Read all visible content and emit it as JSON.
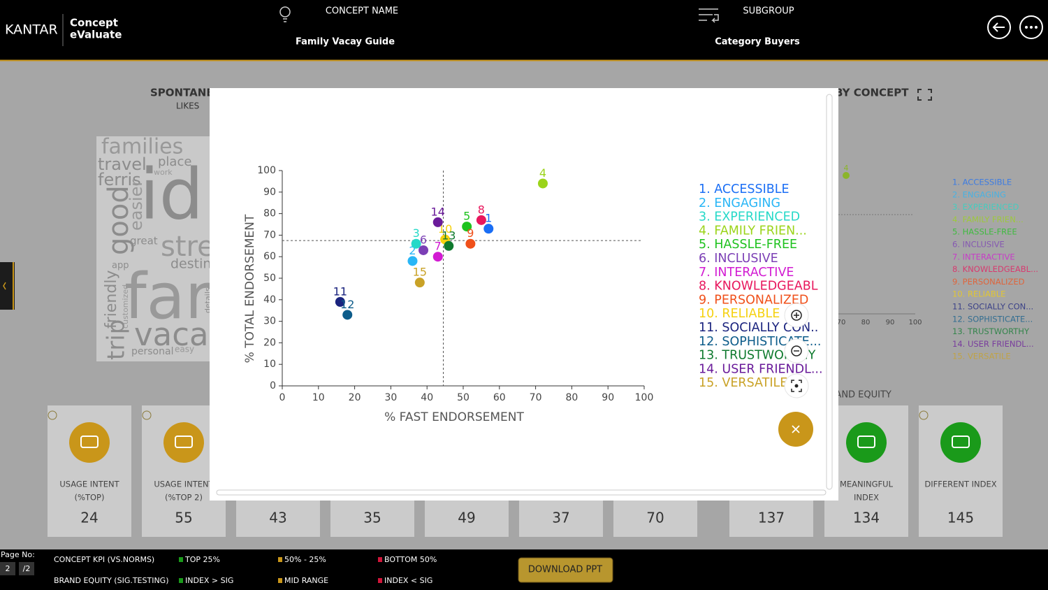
{
  "header": {
    "logo": "KANTAR",
    "app_name": [
      "Concept",
      "eValuate"
    ],
    "concept_label": "CONCEPT NAME",
    "concept_value": "Family Vacay Guide",
    "subgroup_label": "SUBGROUP",
    "subgroup_value": "Category Buyers"
  },
  "background": {
    "spontaneous_title": "SPONTANEOUS",
    "spontaneous_subtitle": "LIKES",
    "word_cloud": [
      "families",
      "travel",
      "place",
      "work",
      "ferris",
      "id",
      "easier",
      "good",
      "great",
      "stre",
      "destin",
      "app",
      "far",
      "trip",
      "friendly",
      "customized",
      "vaca",
      "personal",
      "easy",
      "details"
    ],
    "concept_chart_title": "BY CONCEPT",
    "concept_chart_xticks": [
      70,
      80,
      90,
      100
    ],
    "concept_chart_legend": [
      "1. ACCESSIBLE",
      "2. ENGAGING",
      "3. EXPERIENCED",
      "4. FAMILY FRIEN...",
      "5. HASSLE-FREE",
      "6. INCLUSIVE",
      "7. INTERACTIVE",
      "8. KNOWLEDGEABL...",
      "9. PERSONALIZED",
      "10. RELIABLE",
      "11. SOCIALLY CON...",
      "12. SOPHISTICATE...",
      "13. TRUSTWORTHY",
      "14. USER FRIENDL...",
      "15. VERSATILE"
    ],
    "brand_equity_title": "BRAND EQUITY",
    "kpi_cards": [
      {
        "label": [
          "USAGE INTENT",
          "(%TOP)"
        ],
        "value": 24
      },
      {
        "label": [
          "USAGE INTENT",
          "(%TOP 2)"
        ],
        "value": 55
      },
      {
        "label": [],
        "value": 43
      },
      {
        "label": [],
        "value": 35
      },
      {
        "label": [],
        "value": 49
      },
      {
        "label": [],
        "value": 37
      },
      {
        "label": [],
        "value": 70
      },
      {
        "label": [],
        "value": 137
      },
      {
        "label": [
          "MEANINGFUL",
          "INDEX"
        ],
        "value": 134
      },
      {
        "label": [
          "DIFFERENT INDEX"
        ],
        "value": 145
      }
    ]
  },
  "chart_data": {
    "type": "scatter",
    "x_label": "% FAST ENDORSEMENT",
    "y_label": "% TOTAL ENDORSEMENT",
    "xlim": [
      0,
      100
    ],
    "ylim": [
      0,
      100
    ],
    "xticks": [
      0,
      10,
      20,
      30,
      40,
      50,
      60,
      70,
      80,
      90,
      100
    ],
    "yticks": [
      0,
      10,
      20,
      30,
      40,
      50,
      60,
      70,
      80,
      90,
      100
    ],
    "x_reference": 44.5,
    "y_reference": 67.5,
    "series": [
      {
        "name": "1. ACCESSIBLE",
        "label": "1",
        "color": "#1a6ef5",
        "x": [
          57
        ],
        "values": [
          73
        ]
      },
      {
        "name": "2. ENGAGING",
        "label": "2",
        "color": "#29b6f6",
        "x": [
          36
        ],
        "values": [
          58
        ]
      },
      {
        "name": "3. EXPERIENCED",
        "label": "3",
        "color": "#26d9c8",
        "x": [
          37
        ],
        "values": [
          66
        ]
      },
      {
        "name": "4. FAMILY FRIEN...",
        "label": "4",
        "color": "#9bd41a",
        "x": [
          72
        ],
        "values": [
          94
        ]
      },
      {
        "name": "5. HASSLE-FREE",
        "label": "5",
        "color": "#1ec21e",
        "x": [
          51
        ],
        "values": [
          74
        ]
      },
      {
        "name": "6. INCLUSIVE",
        "label": "6",
        "color": "#7b3fb5",
        "x": [
          39
        ],
        "values": [
          63
        ]
      },
      {
        "name": "7. INTERACTIVE",
        "label": "7",
        "color": "#d21bd2",
        "x": [
          43
        ],
        "values": [
          60
        ]
      },
      {
        "name": "8. KNOWLEDGEABL",
        "label": "8",
        "color": "#e8175d",
        "x": [
          55
        ],
        "values": [
          77
        ]
      },
      {
        "name": "9. PERSONALIZED",
        "label": "9",
        "color": "#f0501a",
        "x": [
          52
        ],
        "values": [
          66
        ]
      },
      {
        "name": "10. RELIABLE",
        "label": "10",
        "color": "#f5d10f",
        "x": [
          45
        ],
        "values": [
          68
        ]
      },
      {
        "name": "11. SOCIALLY CON..",
        "label": "11",
        "color": "#1a237e",
        "x": [
          16
        ],
        "values": [
          39
        ]
      },
      {
        "name": "12. SOPHISTICATE...",
        "label": "12",
        "color": "#0d5c8a",
        "x": [
          18
        ],
        "values": [
          33
        ]
      },
      {
        "name": "13. TRUSTWORTHY",
        "label": "13",
        "color": "#0f7a2e",
        "x": [
          46
        ],
        "values": [
          65
        ]
      },
      {
        "name": "14. USER FRIENDL...",
        "label": "14",
        "color": "#6a1b9a",
        "x": [
          43
        ],
        "values": [
          76
        ]
      },
      {
        "name": "15. VERSATILE",
        "label": "15",
        "color": "#c9a227",
        "x": [
          38
        ],
        "values": [
          48
        ]
      }
    ]
  },
  "footer": {
    "page_label": "Page No:",
    "page_current": "2",
    "page_total": "/2",
    "kpi_legend_title": "CONCEPT KPI (VS.NORMS)",
    "kpi_legend": [
      "TOP 25%",
      "50% - 25%",
      "BOTTOM 50%"
    ],
    "equity_legend_title": "BRAND EQUITY (SIG.TESTING)",
    "equity_legend": [
      "INDEX > SIG",
      "MID RANGE",
      "INDEX < SIG"
    ],
    "download_button": "DOWNLOAD PPT"
  }
}
